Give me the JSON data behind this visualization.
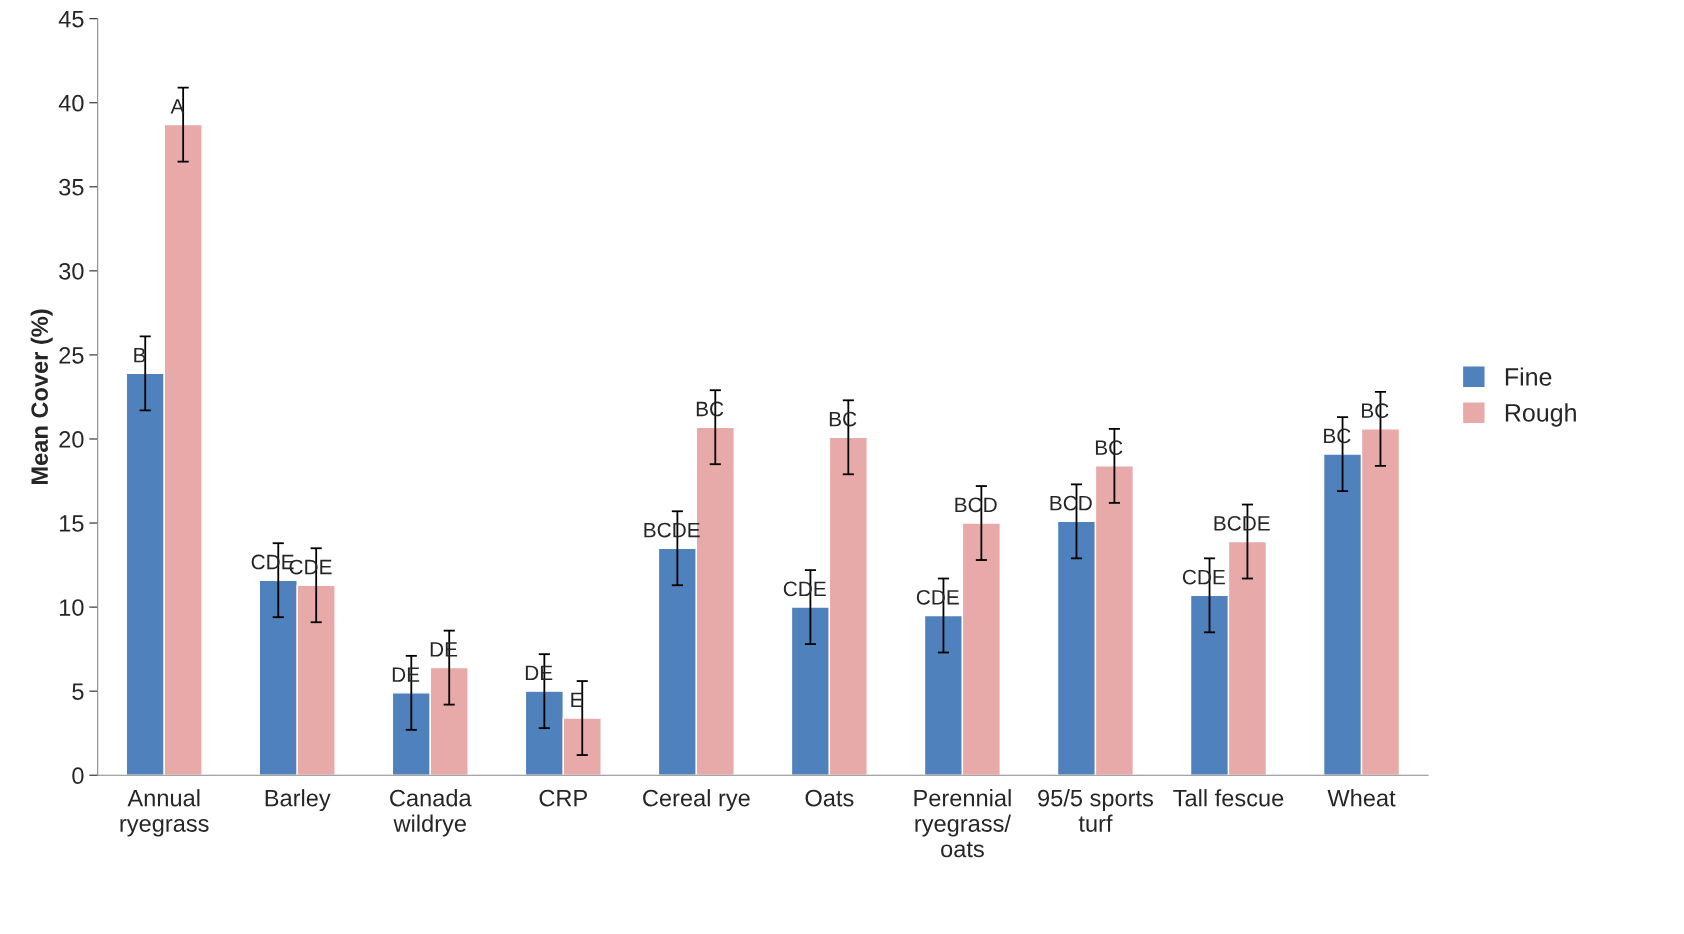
{
  "chart_data": {
    "type": "bar",
    "ylabel": "Mean Cover (%)",
    "categories": [
      "Annual\nryegrass",
      "Barley",
      "Canada\nwildrye",
      "CRP",
      "Cereal rye",
      "Oats",
      "Perennial\nryegrass/\noats",
      "95/5 sports\nturf",
      "Tall fescue",
      "Wheat"
    ],
    "series": [
      {
        "name": "Fine",
        "color": "#4f81bd",
        "values": [
          23.9,
          11.6,
          4.9,
          5.0,
          13.5,
          10.0,
          9.5,
          15.1,
          10.7,
          19.1
        ],
        "errors": [
          2.2,
          2.2,
          2.2,
          2.2,
          2.2,
          2.2,
          2.2,
          2.2,
          2.2,
          2.2
        ],
        "value_labels": [
          "B",
          "CDE",
          "DE",
          "DE",
          "BCDE",
          "CDE",
          "CDE",
          "BCD",
          "CDE",
          "BC"
        ]
      },
      {
        "name": "Rough",
        "color": "#e8a9a9",
        "values": [
          38.7,
          11.3,
          6.4,
          3.4,
          20.7,
          20.1,
          15.0,
          18.4,
          13.9,
          20.6
        ],
        "errors": [
          2.2,
          2.2,
          2.2,
          2.2,
          2.2,
          2.2,
          2.2,
          2.2,
          2.2,
          2.2
        ],
        "value_labels": [
          "A",
          "CDE",
          "DE",
          "E",
          "BC",
          "BC",
          "BCD",
          "BC",
          "BCDE",
          "BC"
        ]
      }
    ],
    "ylim": [
      0,
      45
    ],
    "yticks": [
      0,
      5,
      10,
      15,
      20,
      25,
      30,
      35,
      40,
      45
    ],
    "grid": false,
    "legend": "right"
  }
}
